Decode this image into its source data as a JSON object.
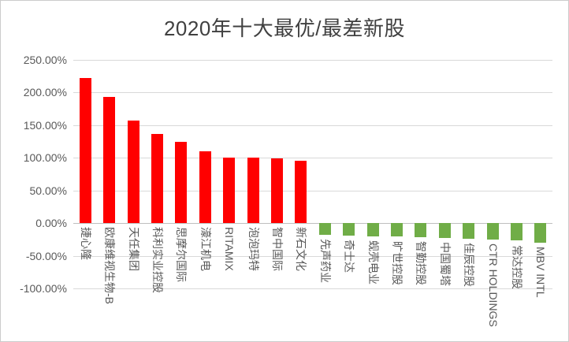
{
  "chart_data": {
    "type": "bar",
    "title": "2020年十大最优/最差新股",
    "categories": [
      "捷心隆",
      "欧康维视生物-B",
      "天任集团",
      "科利实业控股",
      "思摩尔国际",
      "濠江机电",
      "RITAMIX",
      "泡泡玛特",
      "智中国际",
      "新石文化",
      "先声药业",
      "奇士达",
      "蚬壳电业",
      "旷世控股",
      "智勤控股",
      "中国蜀塔",
      "佳辰控股",
      "CTR HOLDINGS",
      "常达控股",
      "MBV INTL"
    ],
    "values": [
      222,
      193,
      157,
      137,
      125,
      110,
      101,
      100,
      99,
      95,
      -18,
      -19,
      -20,
      -21,
      -22,
      -23,
      -24,
      -25,
      -27,
      -30
    ],
    "value_format": "percent",
    "y_ticks": [
      "250.00%",
      "200.00%",
      "150.00%",
      "100.00%",
      "50.00%",
      "0.00%",
      "-50.00%",
      "-100.00%"
    ],
    "ylim": [
      -100,
      250
    ],
    "grid": true,
    "legend": false,
    "positive_color": "#ff0000",
    "negative_color": "#70ad47",
    "gridline_color": "#d9d9d9",
    "axis_text_color": "#595959",
    "title_color": "#404040"
  }
}
